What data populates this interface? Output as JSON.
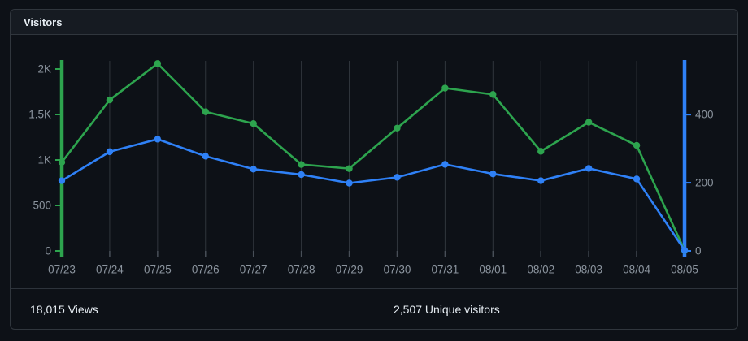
{
  "card": {
    "title": "Visitors"
  },
  "footer": {
    "views_label": "18,015 Views",
    "unique_label": "2,507 Unique visitors"
  },
  "colors": {
    "views": "#2da44e",
    "unique": "#2f81f7",
    "grid": "#30363d",
    "x_tick": "#484f58",
    "tick_label": "#8b949e",
    "card_border": "#30363d",
    "header_bg": "#161b22",
    "page_bg": "#0d1117",
    "footer_text": "#e6edf3"
  },
  "chart_data": {
    "type": "line",
    "title": "Visitors",
    "x": [
      "07/23",
      "07/24",
      "07/25",
      "07/26",
      "07/27",
      "07/28",
      "07/29",
      "07/30",
      "07/31",
      "08/01",
      "08/02",
      "08/03",
      "08/04",
      "08/05"
    ],
    "series": [
      {
        "name": "Views",
        "yaxis": "left",
        "color": "#2da44e",
        "values": [
          975,
          1660,
          2060,
          1530,
          1400,
          950,
          905,
          1350,
          1790,
          1720,
          1095,
          1415,
          1160,
          5
        ]
      },
      {
        "name": "Unique visitors",
        "yaxis": "right",
        "color": "#2f81f7",
        "values": [
          206,
          291,
          328,
          278,
          240,
          224,
          199,
          216,
          254,
          226,
          206,
          242,
          211,
          2
        ]
      }
    ],
    "left_axis": {
      "range": [
        0,
        2000
      ],
      "ticks": [
        {
          "v": 2000,
          "label": "2K"
        },
        {
          "v": 1500,
          "label": "1.5K"
        },
        {
          "v": 1000,
          "label": "1K"
        },
        {
          "v": 500,
          "label": "500"
        },
        {
          "v": 0,
          "label": "0"
        }
      ]
    },
    "right_axis": {
      "range": [
        0,
        560
      ],
      "ticks": [
        {
          "v": 400,
          "label": "400"
        },
        {
          "v": 200,
          "label": "200"
        },
        {
          "v": 0,
          "label": "0"
        }
      ]
    },
    "grid": "vertical",
    "legend_position": "none",
    "totals": {
      "views": "18,015",
      "unique_visitors": "2,507"
    }
  }
}
